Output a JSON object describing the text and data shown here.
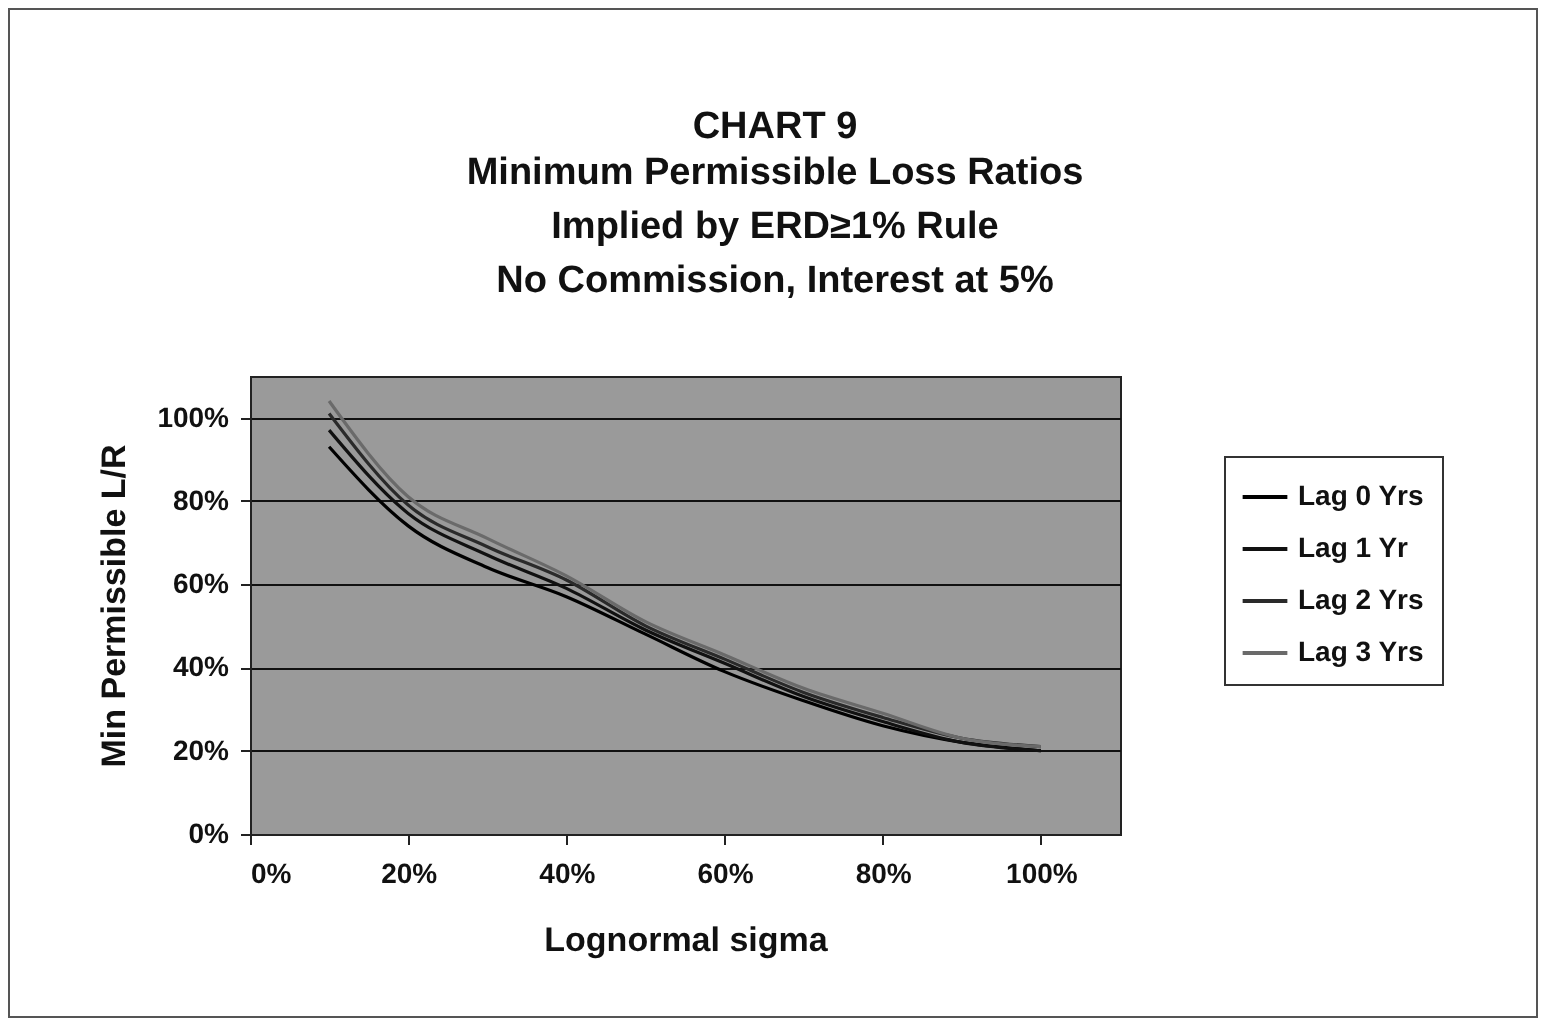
{
  "chart_data": {
    "type": "line",
    "title": "CHART 9",
    "subtitle": [
      "Minimum Permissible Loss Ratios",
      "Implied by ERD≥1% Rule",
      "No Commission, Interest at 5%"
    ],
    "xlabel": "Lognormal sigma",
    "ylabel": "Min Permissible L/R",
    "x": [
      10,
      20,
      30,
      40,
      50,
      60,
      70,
      80,
      90,
      100
    ],
    "series": [
      {
        "name": "Lag 0 Yrs",
        "color": "#000000",
        "values": [
          93,
          74,
          64,
          57,
          48,
          39,
          32,
          26,
          22,
          20
        ]
      },
      {
        "name": "Lag 1 Yr",
        "color": "#111111",
        "values": [
          97,
          77,
          67,
          59,
          49,
          41,
          33,
          27,
          22,
          20
        ]
      },
      {
        "name": "Lag 2 Yrs",
        "color": "#2a2a2a",
        "values": [
          101,
          79,
          69,
          61,
          50,
          42,
          34,
          28,
          23,
          21
        ]
      },
      {
        "name": "Lag 3 Yrs",
        "color": "#6a6a6a",
        "values": [
          104,
          81,
          71,
          62,
          51,
          43,
          35,
          29,
          23,
          21
        ]
      }
    ],
    "xlim": [
      0,
      110
    ],
    "ylim": [
      0,
      110
    ],
    "xticks": [
      {
        "value": 0,
        "label": "0%"
      },
      {
        "value": 20,
        "label": "20%"
      },
      {
        "value": 40,
        "label": "40%"
      },
      {
        "value": 60,
        "label": "60%"
      },
      {
        "value": 80,
        "label": "80%"
      },
      {
        "value": 100,
        "label": "100%"
      }
    ],
    "yticks": [
      {
        "value": 0,
        "label": "0%"
      },
      {
        "value": 20,
        "label": "20%"
      },
      {
        "value": 40,
        "label": "40%"
      },
      {
        "value": 60,
        "label": "60%"
      },
      {
        "value": 80,
        "label": "80%"
      },
      {
        "value": 100,
        "label": "100%"
      }
    ],
    "grid": "y",
    "legend": "right",
    "marker": "none",
    "line_style": "solid"
  }
}
